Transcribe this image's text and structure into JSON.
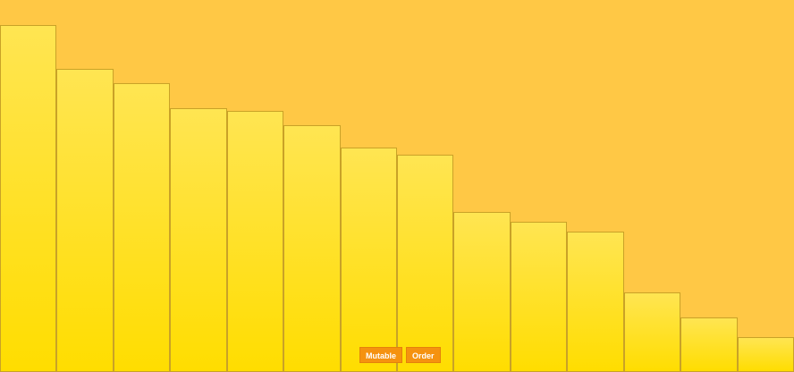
{
  "colors": {
    "background": "#ffc845",
    "bar_top": "#ffe552",
    "bar_bottom": "#ffdd00",
    "bar_border": "#c9a227",
    "button": "#f5920f"
  },
  "chart_data": {
    "type": "bar",
    "title": "",
    "xlabel": "",
    "ylabel": "",
    "ylim": [
      0,
      416
    ],
    "values": [
      388,
      339,
      323,
      295,
      292,
      276,
      251,
      243,
      179,
      168,
      157,
      89,
      61,
      39
    ]
  },
  "controls": {
    "mutable_label": "Mutable",
    "order_label": "Order"
  }
}
